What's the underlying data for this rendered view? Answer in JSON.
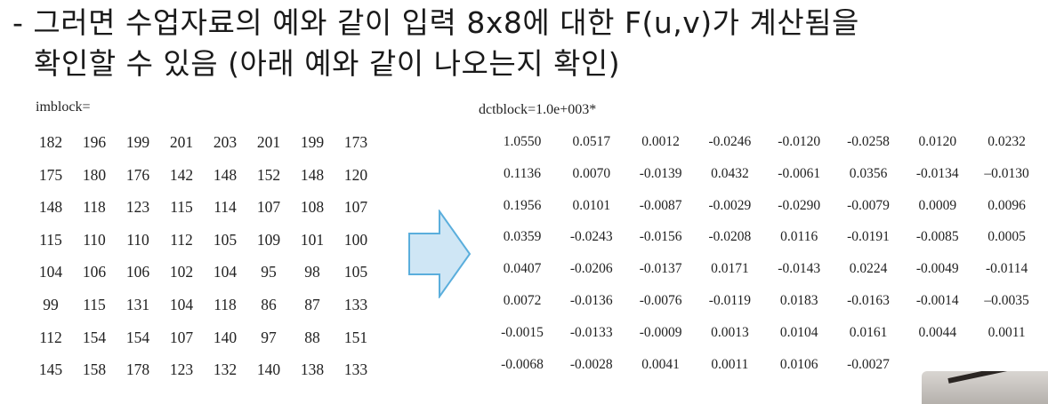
{
  "headline": {
    "line1": "- 그러면 수업자료의 예와 같이 입력 8x8에 대한 F(u,v)가 계산됨을",
    "line2": "확인할 수 있음 (아래 예와 같이 나오는지 확인)"
  },
  "imblock": {
    "label": "imblock=",
    "rows": [
      [
        "182",
        "196",
        "199",
        "201",
        "203",
        "201",
        "199",
        "173"
      ],
      [
        "175",
        "180",
        "176",
        "142",
        "148",
        "152",
        "148",
        "120"
      ],
      [
        "148",
        "118",
        "123",
        "115",
        "114",
        "107",
        "108",
        "107"
      ],
      [
        "115",
        "110",
        "110",
        "112",
        "105",
        "109",
        "101",
        "100"
      ],
      [
        "104",
        "106",
        "106",
        "102",
        "104",
        "95",
        "98",
        "105"
      ],
      [
        "99",
        "115",
        "131",
        "104",
        "118",
        "86",
        "87",
        "133"
      ],
      [
        "112",
        "154",
        "154",
        "107",
        "140",
        "97",
        "88",
        "151"
      ],
      [
        "145",
        "158",
        "178",
        "123",
        "132",
        "140",
        "138",
        "133"
      ]
    ]
  },
  "dctblock": {
    "label": "dctblock=1.0e+003*",
    "rows": [
      [
        "1.0550",
        "0.0517",
        "0.0012",
        "-0.0246",
        "-0.0120",
        "-0.0258",
        "0.0120",
        "0.0232"
      ],
      [
        "0.1136",
        "0.0070",
        "-0.0139",
        "0.0432",
        "-0.0061",
        "0.0356",
        "-0.0134",
        "–0.0130"
      ],
      [
        "0.1956",
        "0.0101",
        "-0.0087",
        "-0.0029",
        "-0.0290",
        "-0.0079",
        "0.0009",
        "0.0096"
      ],
      [
        "0.0359",
        "-0.0243",
        "-0.0156",
        "-0.0208",
        "0.0116",
        "-0.0191",
        "-0.0085",
        "0.0005"
      ],
      [
        "0.0407",
        "-0.0206",
        "-0.0137",
        "0.0171",
        "-0.0143",
        "0.0224",
        "-0.0049",
        "-0.0114"
      ],
      [
        "0.0072",
        "-0.0136",
        "-0.0076",
        "-0.0119",
        "0.0183",
        "-0.0163",
        "-0.0014",
        "–0.0035"
      ],
      [
        "-0.0015",
        "-0.0133",
        "-0.0009",
        "0.0013",
        "0.0104",
        "0.0161",
        "0.0044",
        "0.0011"
      ],
      [
        "-0.0068",
        "-0.0028",
        "0.0041",
        "0.0011",
        "0.0106",
        "-0.0027",
        "",
        ""
      ]
    ]
  },
  "colors": {
    "arrow_fill": "#cfe6f5",
    "arrow_stroke": "#5aaedc"
  }
}
